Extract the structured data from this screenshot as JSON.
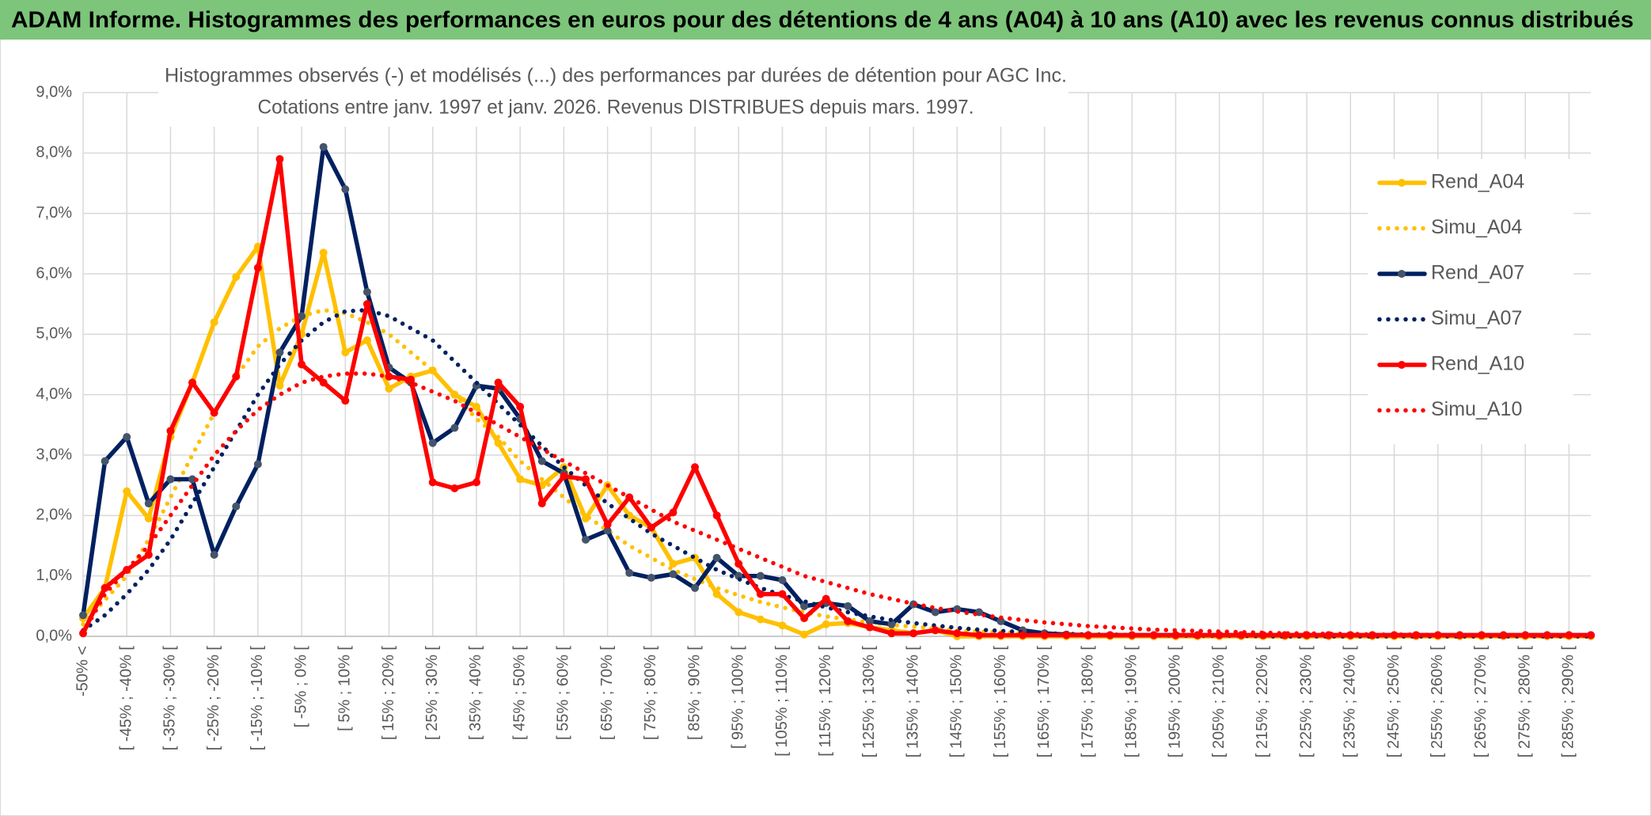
{
  "header": {
    "title": "ADAM Informe. Histogrammes des performances en euros pour des détentions de 4 ans (A04) à 10 ans (A10) avec les revenus connus distribués"
  },
  "chart_data": {
    "type": "line",
    "title": "Histogrammes observés (-) et modélisés (...) des performances par durées de détention pour AGC Inc.",
    "subtitle": "Cotations entre janv. 1997 et janv. 2026. Revenus DISTRIBUES depuis mars. 1997.",
    "categories": [
      "-50% <",
      null,
      "[ -45% ; -40% [",
      null,
      "[ -35% ; -30% [",
      null,
      "[ -25% ; -20% [",
      null,
      "[ -15% ; -10% [",
      null,
      "[ -5% ; 0% [",
      null,
      "[ 5% ; 10% [",
      null,
      "[ 15% ; 20% [",
      null,
      "[ 25% ; 30% [",
      null,
      "[ 35% ; 40% [",
      null,
      "[ 45% ; 50% [",
      null,
      "[ 55% ; 60% [",
      null,
      "[ 65% ; 70% [",
      null,
      "[ 75% ; 80% [",
      null,
      "[ 85% ; 90% [",
      null,
      "[ 95% ; 100% [",
      null,
      "[ 105% ; 110% [",
      null,
      "[ 115% ; 120% [",
      null,
      "[ 125% ; 130% [",
      null,
      "[ 135% ; 140% [",
      null,
      "[ 145% ; 150% [",
      null,
      "[ 155% ; 160% [",
      null,
      "[ 165% ; 170% [",
      null,
      "[ 175% ; 180% [",
      null,
      "[ 185% ; 190% [",
      null,
      "[ 195% ; 200% [",
      null,
      "[ 205% ; 210% [",
      null,
      "[ 215% ; 220% [",
      null,
      "[ 225% ; 230% [",
      null,
      "[ 235% ; 240% [",
      null,
      "[ 245% ; 250% [",
      null,
      "[ 255% ; 260% [",
      null,
      "[ 265% ; 270% [",
      null,
      "[ 275% ; 280% [",
      null,
      "[ 285% ; 290% [",
      null
    ],
    "series": [
      {
        "name": "Rend_A04",
        "color": "#ffc000",
        "line_style": "solid",
        "values": [
          0.3,
          0.8,
          2.4,
          1.95,
          3.3,
          4.2,
          5.2,
          5.95,
          6.45,
          4.15,
          5.0,
          6.35,
          4.7,
          4.9,
          4.1,
          4.3,
          4.4,
          4.0,
          3.8,
          3.2,
          2.6,
          2.5,
          2.8,
          1.95,
          2.5,
          2.0,
          1.8,
          1.2,
          1.3,
          0.7,
          0.4,
          0.28,
          0.18,
          0.03,
          0.2,
          0.22,
          0.15,
          0.1,
          0.05,
          0.1,
          0,
          0,
          0,
          0,
          0,
          0,
          0,
          0,
          0,
          0,
          0,
          0,
          0,
          0,
          0,
          0,
          0,
          0,
          0,
          0,
          0,
          0,
          0,
          0,
          0,
          0,
          0,
          0,
          0,
          0
        ]
      },
      {
        "name": "Simu_A04",
        "color": "#ffc000",
        "line_style": "dotted",
        "values": [
          0.2,
          0.6,
          1.0,
          1.6,
          2.3,
          3.0,
          3.7,
          4.3,
          4.8,
          5.1,
          5.3,
          5.4,
          5.35,
          5.2,
          5.0,
          4.7,
          4.4,
          4.0,
          3.6,
          3.3,
          2.9,
          2.6,
          2.3,
          2.0,
          1.75,
          1.5,
          1.3,
          1.1,
          0.95,
          0.8,
          0.68,
          0.57,
          0.48,
          0.4,
          0.33,
          0.28,
          0.23,
          0.19,
          0.16,
          0.13,
          0.1,
          0.08,
          0.07,
          0.05,
          0.04,
          0.03,
          0.03,
          0.02,
          0.02,
          0.01,
          0.01,
          0.01,
          0.01,
          0.01,
          0,
          0,
          0,
          0,
          0,
          0,
          0,
          0,
          0,
          0,
          0,
          0,
          0,
          0,
          0,
          0
        ]
      },
      {
        "name": "Rend_A07",
        "color": "#002060",
        "line_style": "solid",
        "values": [
          0.35,
          2.9,
          3.3,
          2.2,
          2.6,
          2.6,
          1.35,
          2.15,
          2.85,
          4.7,
          5.3,
          8.1,
          7.4,
          5.7,
          4.45,
          4.2,
          3.2,
          3.45,
          4.15,
          4.1,
          3.6,
          2.9,
          2.7,
          1.6,
          1.75,
          1.05,
          0.97,
          1.03,
          0.8,
          1.3,
          1.0,
          1.0,
          0.93,
          0.5,
          0.55,
          0.5,
          0.25,
          0.2,
          0.53,
          0.4,
          0.45,
          0.4,
          0.25,
          0.1,
          0.05,
          0.03,
          0.02,
          0.02,
          0.02,
          0.02,
          0.02,
          0.02,
          0.02,
          0.02,
          0.02,
          0.02,
          0.02,
          0.02,
          0.02,
          0.02,
          0.02,
          0.02,
          0.02,
          0.02,
          0.02,
          0.02,
          0.02,
          0.02,
          0.02,
          0.02
        ]
      },
      {
        "name": "Simu_A07",
        "color": "#002060",
        "line_style": "dotted",
        "values": [
          0.1,
          0.35,
          0.7,
          1.1,
          1.6,
          2.2,
          2.8,
          3.4,
          4.0,
          4.5,
          4.9,
          5.2,
          5.38,
          5.4,
          5.3,
          5.1,
          4.9,
          4.55,
          4.2,
          3.85,
          3.5,
          3.15,
          2.8,
          2.5,
          2.2,
          1.95,
          1.7,
          1.5,
          1.3,
          1.1,
          0.95,
          0.8,
          0.68,
          0.58,
          0.48,
          0.4,
          0.33,
          0.27,
          0.22,
          0.18,
          0.14,
          0.11,
          0.09,
          0.07,
          0.05,
          0.04,
          0.03,
          0.03,
          0.02,
          0.02,
          0.01,
          0.01,
          0.01,
          0.01,
          0,
          0,
          0,
          0,
          0,
          0,
          0,
          0,
          0,
          0,
          0,
          0,
          0,
          0,
          0,
          0
        ]
      },
      {
        "name": "Rend_A10",
        "color": "#ff0000",
        "line_style": "solid",
        "values": [
          0.05,
          0.8,
          1.1,
          1.35,
          3.4,
          4.2,
          3.7,
          4.3,
          6.1,
          7.9,
          4.5,
          4.2,
          3.9,
          5.5,
          4.3,
          4.25,
          2.55,
          2.45,
          2.55,
          4.2,
          3.8,
          2.2,
          2.65,
          2.6,
          1.85,
          2.3,
          1.8,
          2.05,
          2.8,
          2.0,
          1.2,
          0.7,
          0.7,
          0.3,
          0.62,
          0.25,
          0.15,
          0.05,
          0.05,
          0.1,
          0.05,
          0.02,
          0.02,
          0.02,
          0.02,
          0.02,
          0.02,
          0.02,
          0.02,
          0.02,
          0.02,
          0.02,
          0.02,
          0.02,
          0.02,
          0.02,
          0.02,
          0.02,
          0.02,
          0.02,
          0.02,
          0.02,
          0.02,
          0.02,
          0.02,
          0.02,
          0.02,
          0.02,
          0.02,
          0.02
        ]
      },
      {
        "name": "Simu_A10",
        "color": "#ff0000",
        "line_style": "dotted",
        "values": [
          0.05,
          0.7,
          1.1,
          1.5,
          2.0,
          2.5,
          3.0,
          3.4,
          3.75,
          4.0,
          4.2,
          4.3,
          4.35,
          4.35,
          4.3,
          4.2,
          4.05,
          3.9,
          3.7,
          3.5,
          3.3,
          3.1,
          2.9,
          2.7,
          2.5,
          2.3,
          2.1,
          1.9,
          1.75,
          1.6,
          1.45,
          1.3,
          1.15,
          1.0,
          0.9,
          0.8,
          0.7,
          0.62,
          0.54,
          0.47,
          0.41,
          0.36,
          0.31,
          0.27,
          0.23,
          0.2,
          0.17,
          0.15,
          0.13,
          0.11,
          0.1,
          0.09,
          0.08,
          0.07,
          0.06,
          0.05,
          0.05,
          0.04,
          0.04,
          0.03,
          0.03,
          0.03,
          0.02,
          0.02,
          0.02,
          0.02,
          0.01,
          0.01,
          0.01,
          0.01
        ]
      }
    ],
    "ylim": [
      0,
      9
    ],
    "yticks": [
      {
        "value": 0,
        "label": "0,0%"
      },
      {
        "value": 1,
        "label": "1,0%"
      },
      {
        "value": 2,
        "label": "2,0%"
      },
      {
        "value": 3,
        "label": "3,0%"
      },
      {
        "value": 4,
        "label": "4,0%"
      },
      {
        "value": 5,
        "label": "5,0%"
      },
      {
        "value": 6,
        "label": "6,0%"
      },
      {
        "value": 7,
        "label": "7,0%"
      },
      {
        "value": 8,
        "label": "8,0%"
      },
      {
        "value": 9,
        "label": "9,0%"
      }
    ],
    "grid": true,
    "legend": "right"
  }
}
